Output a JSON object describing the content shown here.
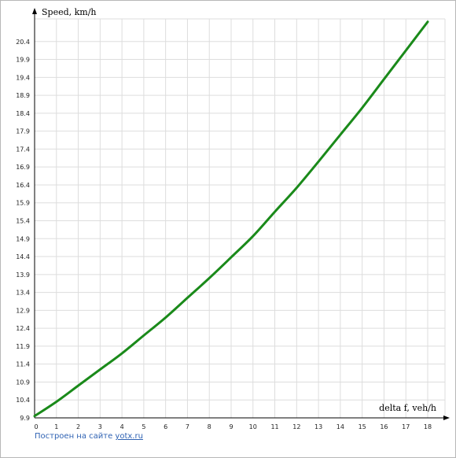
{
  "chart_data": {
    "type": "line",
    "title": "",
    "xlabel": "delta f, veh/h",
    "ylabel": "Speed, km/h",
    "xlim": [
      0,
      18
    ],
    "ylim": [
      9.9,
      20.9
    ],
    "x_ticks": [
      0,
      1,
      2,
      3,
      4,
      5,
      6,
      7,
      8,
      9,
      10,
      11,
      12,
      13,
      14,
      15,
      16,
      17,
      18
    ],
    "y_ticks": [
      9.9,
      10.4,
      10.9,
      11.4,
      11.9,
      12.4,
      12.9,
      13.4,
      13.9,
      14.4,
      14.9,
      15.4,
      15.9,
      16.4,
      16.9,
      17.4,
      17.9,
      18.4,
      18.9,
      19.4,
      19.9,
      20.4
    ],
    "grid": true,
    "legend": "none",
    "series": [
      {
        "color": "#1a8a1a",
        "x": [
          0,
          1,
          2,
          3,
          4,
          5,
          6,
          7,
          8,
          9,
          10,
          11,
          12,
          13,
          14,
          15,
          16,
          17,
          18
        ],
        "y": [
          9.95,
          10.35,
          10.8,
          11.25,
          11.7,
          12.2,
          12.7,
          13.25,
          13.8,
          14.38,
          14.97,
          15.65,
          16.32,
          17.05,
          17.8,
          18.55,
          19.35,
          20.15,
          20.95
        ]
      }
    ]
  },
  "credit": {
    "prefix": "Построен на сайте ",
    "link": "yotx.ru"
  }
}
